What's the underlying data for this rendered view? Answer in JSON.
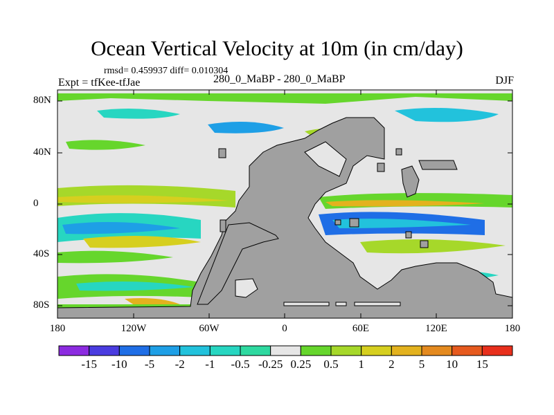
{
  "title": "Ocean Vertical Velocity at 10m (in cm/day)",
  "stats": "rmsd= 0.459937 diff= 0.010304",
  "experiment": "Expt = tfKee-tfJae",
  "period": "280_0_MaBP - 280_0_MaBP",
  "season": "DJF",
  "map": {
    "lat_ticks": [
      "80N",
      "40N",
      "0",
      "40S",
      "80S"
    ],
    "lon_ticks": [
      "180",
      "120W",
      "60W",
      "0",
      "60E",
      "120E",
      "180"
    ],
    "land_color": "#a0a0a0",
    "background_color": "#e6e6e6"
  },
  "colorbar": {
    "labels": [
      "-15",
      "-10",
      "-5",
      "-2",
      "-1",
      "-0.5",
      "-0.25",
      "0.25",
      "0.5",
      "1",
      "2",
      "5",
      "10",
      "15"
    ],
    "colors": [
      "#8c2be0",
      "#4a3ce0",
      "#1f6ee6",
      "#1e9fe6",
      "#22c2dc",
      "#27d6c1",
      "#2ed9a0",
      "#e6e6e6",
      "#66d62c",
      "#a6d82a",
      "#d6cf1f",
      "#e3b21e",
      "#e48a1f",
      "#e65a1e",
      "#e82f1c"
    ]
  }
}
